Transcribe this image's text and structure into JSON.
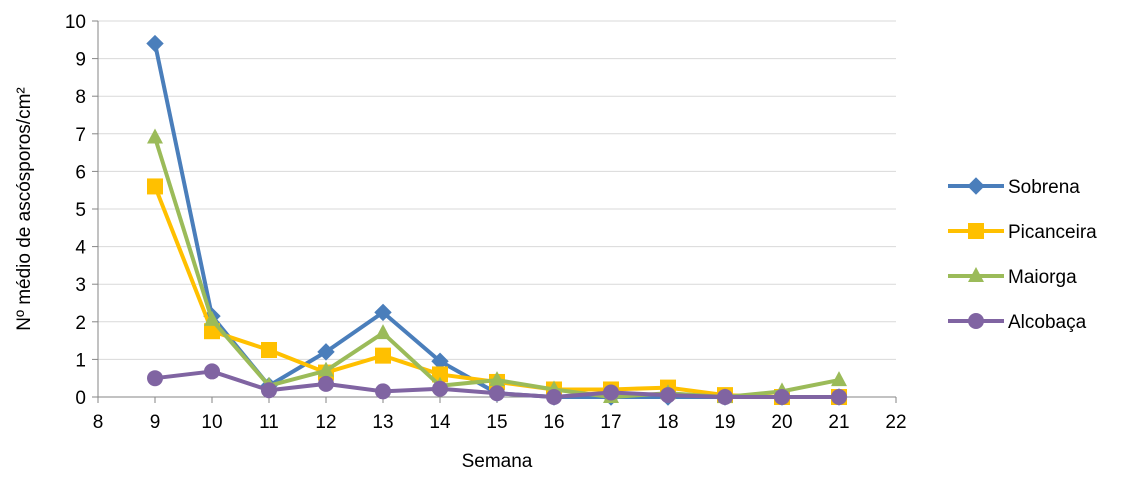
{
  "chart_data": {
    "type": "line",
    "title": "",
    "xlabel": "Semana",
    "ylabel": "Nº médio de ascósporos/cm²",
    "xlim": [
      8,
      22
    ],
    "ylim": [
      0,
      10
    ],
    "x_ticks": [
      "8",
      "9",
      "10",
      "11",
      "12",
      "13",
      "14",
      "15",
      "16",
      "17",
      "18",
      "19",
      "20",
      "21",
      "22"
    ],
    "y_ticks": [
      "0",
      "1",
      "2",
      "3",
      "4",
      "5",
      "6",
      "7",
      "8",
      "9",
      "10"
    ],
    "grid": "horizontal",
    "legend_position": "right",
    "x": [
      9,
      10,
      11,
      12,
      13,
      14,
      15,
      16,
      17,
      18,
      19,
      20,
      21
    ],
    "series": [
      {
        "name": "Sobrena",
        "color": "#4a7ebb",
        "marker": "diamond",
        "values": [
          9.4,
          2.15,
          0.3,
          1.2,
          2.25,
          0.95,
          0.1,
          0.0,
          0.0,
          0.0,
          0.0,
          0.0,
          0.0
        ]
      },
      {
        "name": "Picanceira",
        "color": "#ffc000",
        "marker": "square",
        "values": [
          5.6,
          1.75,
          1.25,
          0.65,
          1.1,
          0.6,
          0.4,
          0.2,
          0.2,
          0.25,
          0.05,
          0.0,
          0.0
        ]
      },
      {
        "name": "Maiorga",
        "color": "#9bbb59",
        "marker": "triangle",
        "values": [
          6.9,
          2.05,
          0.3,
          0.7,
          1.7,
          0.3,
          0.45,
          0.2,
          0.0,
          0.1,
          0.0,
          0.15,
          0.45
        ]
      },
      {
        "name": "Alcobaça",
        "color": "#8064a2",
        "marker": "circle",
        "values": [
          0.5,
          0.68,
          0.18,
          0.35,
          0.15,
          0.22,
          0.1,
          0.0,
          0.12,
          0.05,
          0.0,
          0.0,
          0.0
        ]
      }
    ]
  }
}
